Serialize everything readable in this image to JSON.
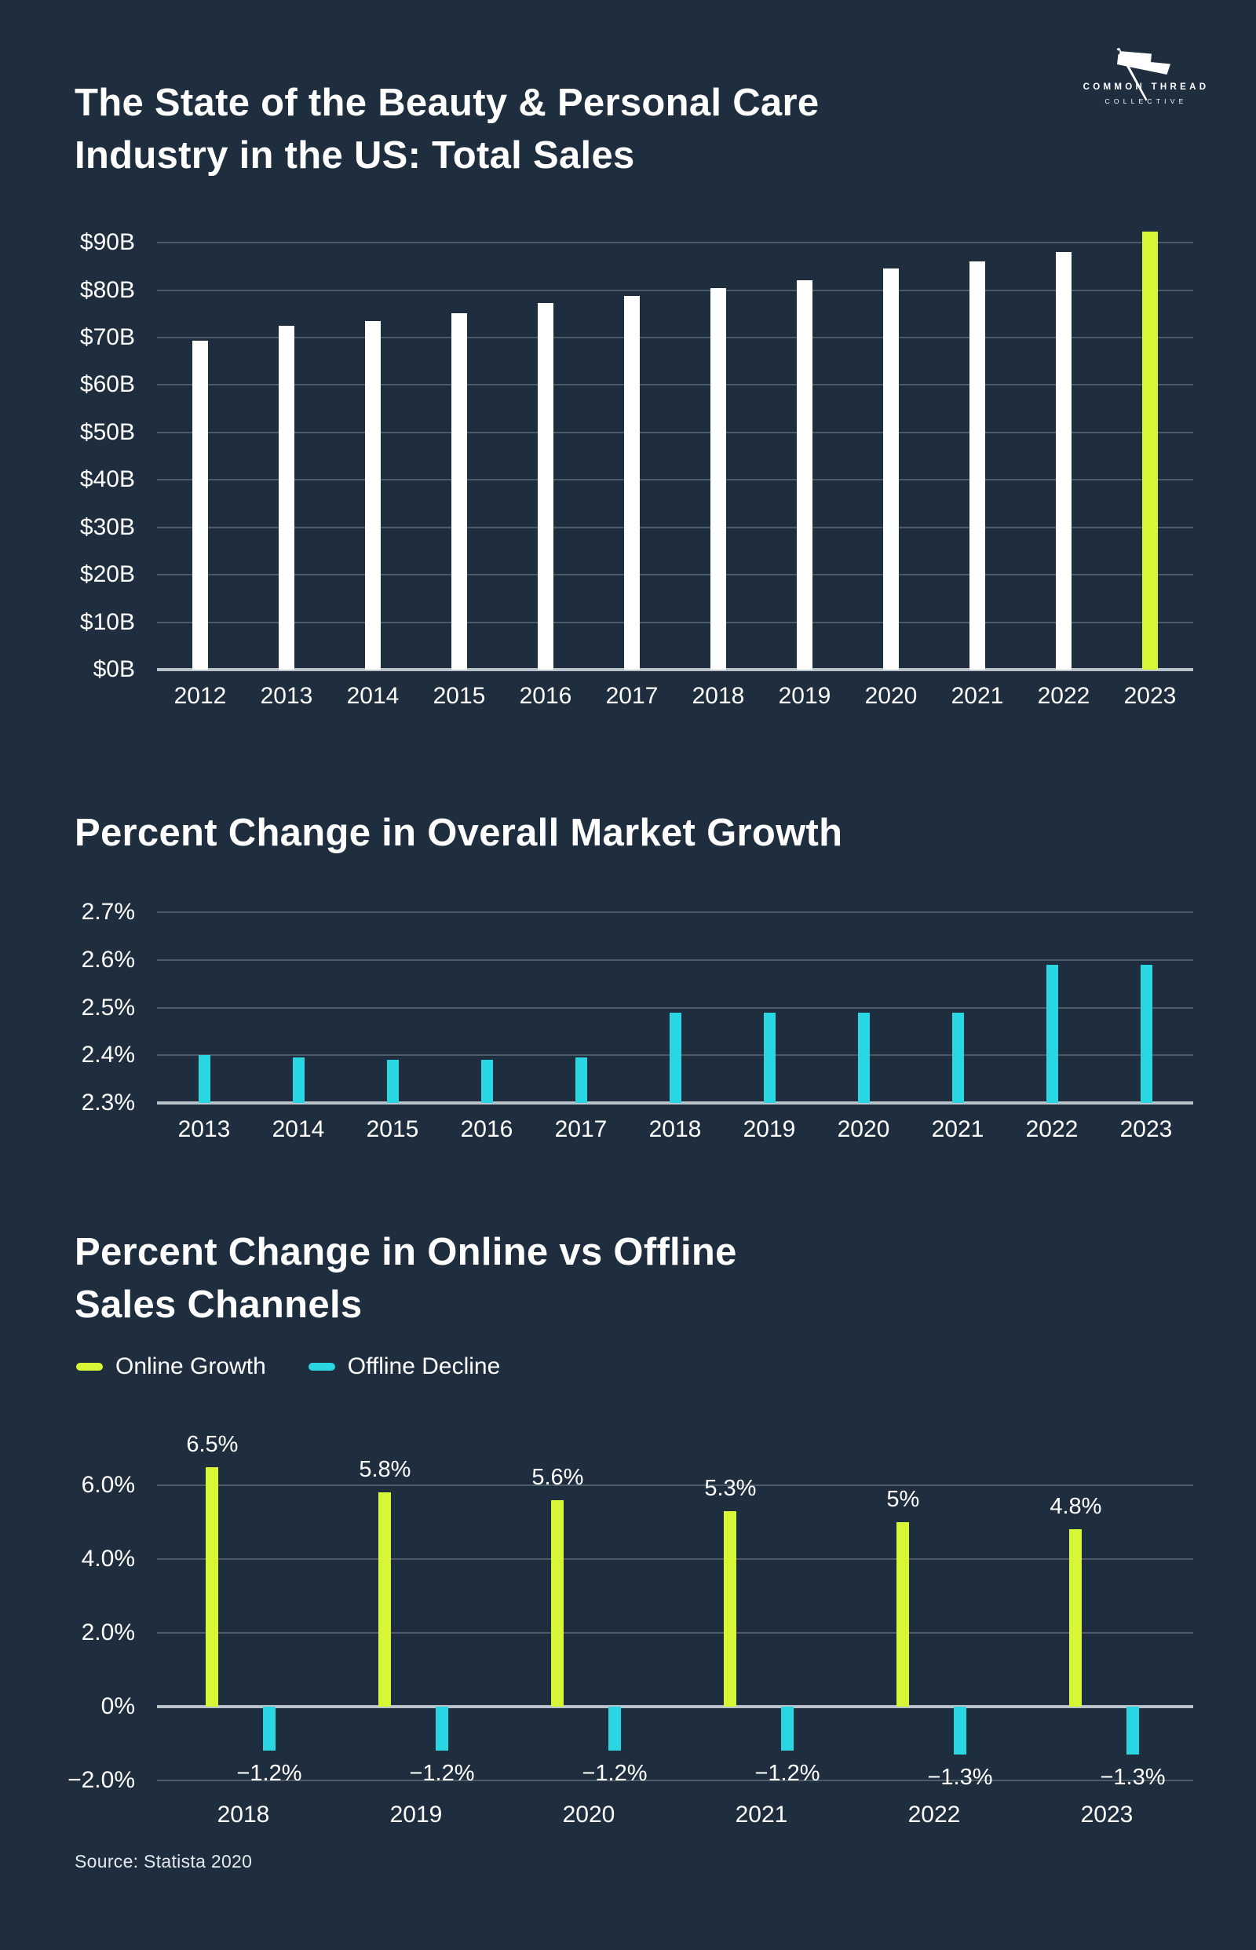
{
  "page": {
    "background": "#1e2e3e",
    "source": "Source: Statista 2020"
  },
  "colors": {
    "volt": "#d7f636",
    "cyan": "#29d6e2",
    "white": "#ffffff",
    "grid": "#4d5b68",
    "axis": "#b9c2ca"
  },
  "logo": {
    "name": "Common Thread Collective",
    "line1": "COMMON THREAD",
    "line2": "COLLECTIVE",
    "icon": "needle-flag-icon"
  },
  "chart_data": [
    {
      "id": "total-sales",
      "type": "bar",
      "title_lines": [
        "The State of the Beauty & Personal Care",
        "Industry in the US: Total Sales"
      ],
      "categories": [
        "2012",
        "2013",
        "2014",
        "2015",
        "2016",
        "2017",
        "2018",
        "2019",
        "2020",
        "2021",
        "2022",
        "2023"
      ],
      "values": [
        69.4,
        72.4,
        73.5,
        75.2,
        77.2,
        78.7,
        80.5,
        82.1,
        84.5,
        86.1,
        88.1,
        92.3
      ],
      "unit": "$B",
      "bar_color": "#ffffff",
      "highlight_index": 11,
      "highlight_color": "#d7f636",
      "ylim": [
        0,
        93
      ],
      "grid": true,
      "legend_position": "none",
      "yticks": [
        {
          "v": 90,
          "label": "$90B"
        },
        {
          "v": 80,
          "label": "$80B"
        },
        {
          "v": 70,
          "label": "$70B"
        },
        {
          "v": 60,
          "label": "$60B"
        },
        {
          "v": 50,
          "label": "$50B"
        },
        {
          "v": 40,
          "label": "$40B"
        },
        {
          "v": 30,
          "label": "$30B"
        },
        {
          "v": 20,
          "label": "$20B"
        },
        {
          "v": 10,
          "label": "$10B"
        },
        {
          "v": 0,
          "label": "$0B",
          "axis": true
        }
      ]
    },
    {
      "id": "market-growth",
      "type": "bar",
      "title_lines": [
        "Percent Change in Overall Market Growth"
      ],
      "categories": [
        "2013",
        "2014",
        "2015",
        "2016",
        "2017",
        "2018",
        "2019",
        "2020",
        "2021",
        "2022",
        "2023"
      ],
      "values": [
        2.4,
        2.395,
        2.39,
        2.39,
        2.395,
        2.49,
        2.49,
        2.49,
        2.49,
        2.59,
        2.59
      ],
      "unit": "%",
      "baseline": 2.3,
      "bar_color": "#29d6e2",
      "ylim": [
        2.3,
        2.72
      ],
      "grid": true,
      "legend_position": "none",
      "yticks": [
        {
          "v": 2.7,
          "label": "2.7%"
        },
        {
          "v": 2.6,
          "label": "2.6%"
        },
        {
          "v": 2.5,
          "label": "2.5%"
        },
        {
          "v": 2.4,
          "label": "2.4%"
        },
        {
          "v": 2.3,
          "label": "2.3%",
          "axis": true
        }
      ]
    },
    {
      "id": "online-vs-offline",
      "type": "grouped-bar",
      "title_lines": [
        "Percent Change in Online vs Offline",
        "Sales Channels"
      ],
      "legend": [
        {
          "label": "Online Growth",
          "color": "#d7f636"
        },
        {
          "label": "Offline Decline",
          "color": "#29d6e2"
        }
      ],
      "legend_position": "top-left",
      "categories": [
        "2018",
        "2019",
        "2020",
        "2021",
        "2022",
        "2023"
      ],
      "series": [
        {
          "name": "Online Growth",
          "color": "#d7f636",
          "values": [
            6.5,
            5.8,
            5.6,
            5.3,
            5,
            4.8
          ],
          "labels": [
            "6.5%",
            "5.8%",
            "5.6%",
            "5.3%",
            "5%",
            "4.8%"
          ]
        },
        {
          "name": "Offline Decline",
          "color": "#29d6e2",
          "values": [
            -1.2,
            -1.2,
            -1.2,
            -1.2,
            -1.3,
            -1.3
          ],
          "labels": [
            "−1.2%",
            "−1.2%",
            "−1.2%",
            "−1.2%",
            "−1.3%",
            "−1.3%"
          ]
        }
      ],
      "unit": "%",
      "ylim": [
        -2,
        7
      ],
      "grid": true,
      "yticks": [
        {
          "v": 6,
          "label": "6.0%"
        },
        {
          "v": 4,
          "label": "4.0%"
        },
        {
          "v": 2,
          "label": "2.0%"
        },
        {
          "v": 0,
          "label": "0%",
          "axis": true
        },
        {
          "v": -2,
          "label": "−2.0%"
        }
      ]
    }
  ]
}
